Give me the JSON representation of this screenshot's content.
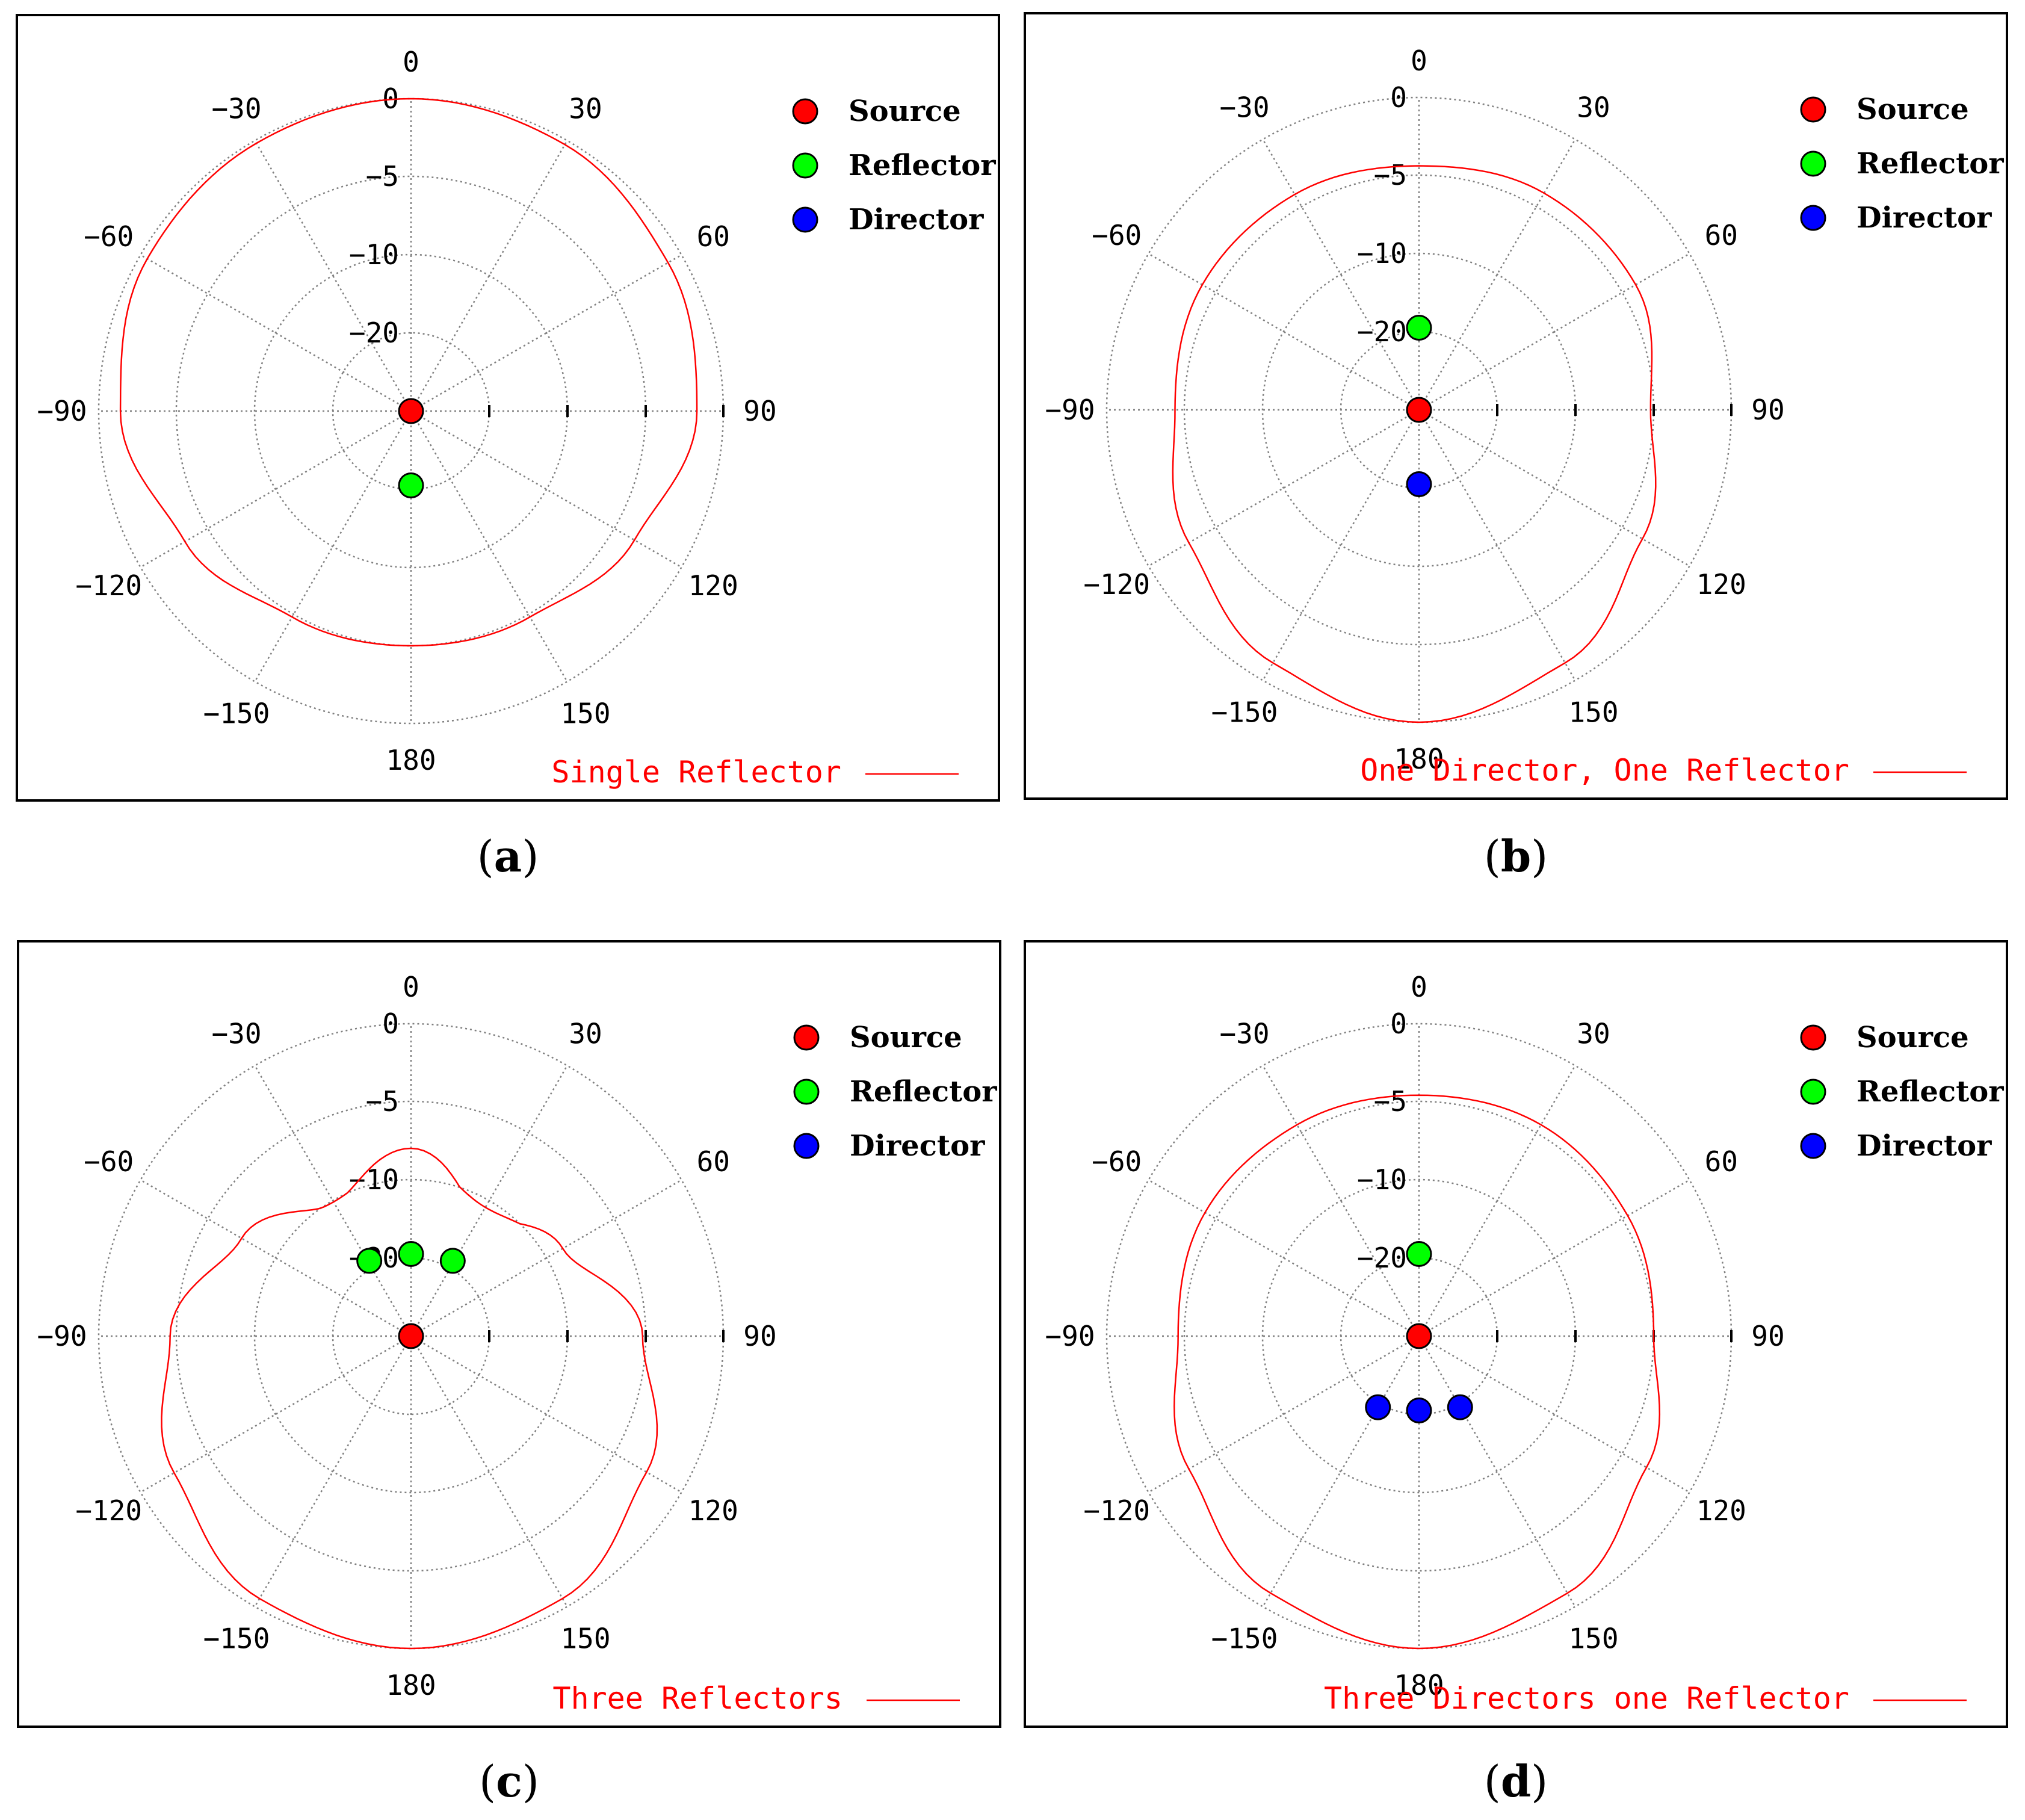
{
  "colors": {
    "curve": "#ff0000",
    "grid": "#808080",
    "frame": "#000000",
    "source": "#ff0000",
    "reflector": "#00ff00",
    "director": "#0000ff"
  },
  "legend": [
    {
      "key": "source",
      "label": "Source"
    },
    {
      "key": "reflector",
      "label": "Reflector"
    },
    {
      "key": "director",
      "label": "Director"
    }
  ],
  "chart_data": [
    {
      "type": "polar-line",
      "caption": "a",
      "curve_label": "Single Reflector",
      "angle_unit": "degrees",
      "angle_ticks": [
        "0",
        "30",
        "60",
        "90",
        "120",
        "150",
        "180",
        "−150",
        "−120",
        "−90",
        "−60",
        "−30"
      ],
      "radial_ticks": [
        "0",
        "−5",
        "−10",
        "−20"
      ],
      "radial_scale_db": [
        0,
        -5,
        -10,
        -20
      ],
      "series": {
        "name": "Single Reflector",
        "angles": [
          0,
          30,
          60,
          90,
          120,
          150,
          180,
          -150,
          -120,
          -90,
          -60,
          -30
        ],
        "gain_db": [
          0,
          -0.3,
          -1.0,
          -1.7,
          -3.5,
          -4.8,
          -5.0,
          -4.8,
          -3.3,
          -1.4,
          -0.5,
          -0.2
        ]
      },
      "elements": [
        {
          "type": "source",
          "angle": 0,
          "radius": 0
        },
        {
          "type": "reflector",
          "angle": 180,
          "radius": -20.5
        }
      ]
    },
    {
      "type": "polar-line",
      "caption": "b",
      "curve_label": "One Director, One Reflector",
      "angle_unit": "degrees",
      "angle_ticks": [
        "0",
        "30",
        "60",
        "90",
        "120",
        "150",
        "180",
        "−150",
        "−120",
        "−90",
        "−60",
        "−30"
      ],
      "radial_ticks": [
        "0",
        "−5",
        "−10",
        "−20"
      ],
      "radial_scale_db": [
        0,
        -5,
        -10,
        -20
      ],
      "series": {
        "name": "One Director, One Reflector",
        "angles": [
          0,
          30,
          60,
          90,
          120,
          150,
          180,
          -150,
          -120,
          -90,
          -60,
          -30
        ],
        "gain_db": [
          -4.4,
          -4.0,
          -4.0,
          -5.2,
          -3.5,
          -1.3,
          0,
          -1.3,
          -3.0,
          -4.4,
          -4.0,
          -4.1
        ]
      },
      "elements": [
        {
          "type": "source",
          "angle": 0,
          "radius": 0
        },
        {
          "type": "reflector",
          "angle": 0,
          "radius": -19.5
        },
        {
          "type": "director",
          "angle": 180,
          "radius": -20.5
        }
      ]
    },
    {
      "type": "polar-line",
      "caption": "c",
      "curve_label": "Three Reflectors",
      "angle_unit": "degrees",
      "angle_ticks": [
        "0",
        "30",
        "60",
        "90",
        "120",
        "150",
        "180",
        "−150",
        "−120",
        "−90",
        "−60",
        "−30"
      ],
      "radial_ticks": [
        "0",
        "−5",
        "−10",
        "−20"
      ],
      "radial_scale_db": [
        0,
        -5,
        -10,
        -20
      ],
      "series": {
        "name": "Three Reflectors",
        "angles": [
          0,
          30,
          60,
          90,
          120,
          150,
          180,
          -150,
          -120,
          -90,
          -60,
          -30
        ],
        "gain_db": [
          -8.0,
          -11.0,
          -8.8,
          -5.2,
          -2.6,
          -0.6,
          0,
          -0.6,
          -2.5,
          -4.6,
          -7.5,
          -10.2
        ]
      },
      "elements": [
        {
          "type": "source",
          "angle": 0,
          "radius": 0
        },
        {
          "type": "reflector",
          "angle": 0,
          "radius": -19.5
        },
        {
          "type": "reflector",
          "angle": -29,
          "radius": -19.0
        },
        {
          "type": "reflector",
          "angle": 29,
          "radius": -19.0
        }
      ]
    },
    {
      "type": "polar-line",
      "caption": "d",
      "curve_label": "Three Directors one Reflector",
      "angle_unit": "degrees",
      "angle_ticks": [
        "0",
        "30",
        "60",
        "90",
        "120",
        "150",
        "180",
        "−150",
        "−120",
        "−90",
        "−60",
        "−30"
      ],
      "radial_ticks": [
        "0",
        "−5",
        "−10",
        "−20"
      ],
      "radial_scale_db": [
        0,
        -5,
        -10,
        -20
      ],
      "series": {
        "name": "Three Directors one Reflector",
        "angles": [
          0,
          30,
          60,
          90,
          120,
          150,
          180,
          -150,
          -120,
          -90,
          -60,
          -30
        ],
        "gain_db": [
          -4.6,
          -4.4,
          -4.6,
          -5.0,
          -3.2,
          -1.0,
          0,
          -1.0,
          -3.0,
          -4.6,
          -4.2,
          -4.4
        ]
      },
      "elements": [
        {
          "type": "source",
          "angle": 0,
          "radius": 0
        },
        {
          "type": "reflector",
          "angle": 0,
          "radius": -19.5
        },
        {
          "type": "director",
          "angle": 180,
          "radius": -20.5
        },
        {
          "type": "director",
          "angle": 150,
          "radius": -19.5
        },
        {
          "type": "director",
          "angle": -150,
          "radius": -19.5
        }
      ]
    }
  ]
}
